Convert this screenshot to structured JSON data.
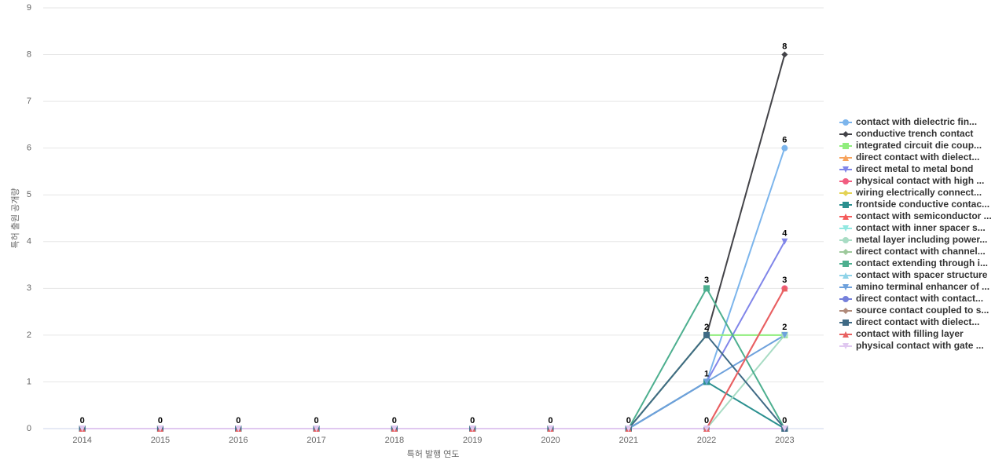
{
  "chart_data": {
    "type": "line",
    "x_label": "특허 발행 연도",
    "y_label": "특허 출원 공개량",
    "categories": [
      "2014",
      "2015",
      "2016",
      "2017",
      "2018",
      "2019",
      "2020",
      "2021",
      "2022",
      "2023"
    ],
    "ylim": [
      0,
      9
    ],
    "yticks": [
      0,
      1,
      2,
      3,
      4,
      5,
      6,
      7,
      8,
      9
    ],
    "grid": true,
    "legend": "right",
    "series": [
      {
        "name": "contact with dielectric fin...",
        "color": "#7cb5ec",
        "values": [
          0,
          0,
          0,
          0,
          0,
          0,
          0,
          0,
          1,
          6
        ]
      },
      {
        "name": "conductive trench contact",
        "color": "#434348",
        "values": [
          0,
          0,
          0,
          0,
          0,
          0,
          0,
          0,
          2,
          8
        ]
      },
      {
        "name": "integrated circuit die coup...",
        "color": "#90ed7d",
        "values": [
          0,
          0,
          0,
          0,
          0,
          0,
          0,
          0,
          2,
          2
        ]
      },
      {
        "name": "direct contact with dielect...",
        "color": "#f7a35c",
        "values": [
          0,
          0,
          0,
          0,
          0,
          0,
          0,
          0,
          0,
          0
        ]
      },
      {
        "name": "direct metal to metal bond",
        "color": "#8085e9",
        "values": [
          0,
          0,
          0,
          0,
          0,
          0,
          0,
          0,
          1,
          4
        ]
      },
      {
        "name": "physical contact with high ...",
        "color": "#f15c80",
        "values": [
          0,
          0,
          0,
          0,
          0,
          0,
          0,
          0,
          0,
          3
        ]
      },
      {
        "name": "wiring electrically connect...",
        "color": "#e4d354",
        "values": [
          0,
          0,
          0,
          0,
          0,
          0,
          0,
          0,
          0,
          0
        ]
      },
      {
        "name": "frontside conductive contac...",
        "color": "#2b908f",
        "values": [
          0,
          0,
          0,
          0,
          0,
          0,
          0,
          0,
          1,
          0
        ]
      },
      {
        "name": "contact with semiconductor ...",
        "color": "#f45b5b",
        "values": [
          0,
          0,
          0,
          0,
          0,
          0,
          0,
          0,
          0,
          0
        ]
      },
      {
        "name": "contact with inner spacer s...",
        "color": "#91e8e1",
        "values": [
          0,
          0,
          0,
          0,
          0,
          0,
          0,
          0,
          0,
          0
        ]
      },
      {
        "name": "metal layer including power...",
        "color": "#a8dcc4",
        "values": [
          0,
          0,
          0,
          0,
          0,
          0,
          0,
          0,
          0,
          2
        ]
      },
      {
        "name": "direct contact with channel...",
        "color": "#9dc99b",
        "values": [
          0,
          0,
          0,
          0,
          0,
          0,
          0,
          0,
          0,
          0
        ]
      },
      {
        "name": "contact extending through i...",
        "color": "#4daf8f",
        "values": [
          0,
          0,
          0,
          0,
          0,
          0,
          0,
          0,
          3,
          0
        ]
      },
      {
        "name": "contact with spacer structure",
        "color": "#8fd3e8",
        "values": [
          0,
          0,
          0,
          0,
          0,
          0,
          0,
          0,
          0,
          0
        ]
      },
      {
        "name": "amino terminal enhancer of ...",
        "color": "#6ea1dc",
        "values": [
          0,
          0,
          0,
          0,
          0,
          0,
          0,
          0,
          1,
          2
        ]
      },
      {
        "name": "direct contact with contact...",
        "color": "#7580db",
        "values": [
          0,
          0,
          0,
          0,
          0,
          0,
          0,
          0,
          0,
          0
        ]
      },
      {
        "name": "source contact coupled to s...",
        "color": "#b08a7a",
        "values": [
          0,
          0,
          0,
          0,
          0,
          0,
          0,
          0,
          0,
          0
        ]
      },
      {
        "name": "direct contact with dielect...",
        "color": "#3f6a85",
        "values": [
          0,
          0,
          0,
          0,
          0,
          0,
          0,
          0,
          2,
          0
        ]
      },
      {
        "name": "contact with filling layer",
        "color": "#e86161",
        "values": [
          0,
          0,
          0,
          0,
          0,
          0,
          0,
          0,
          0,
          3
        ]
      },
      {
        "name": "physical contact with gate ...",
        "color": "#e0c8f0",
        "values": [
          0,
          0,
          0,
          0,
          0,
          0,
          0,
          0,
          0,
          0
        ]
      }
    ]
  }
}
